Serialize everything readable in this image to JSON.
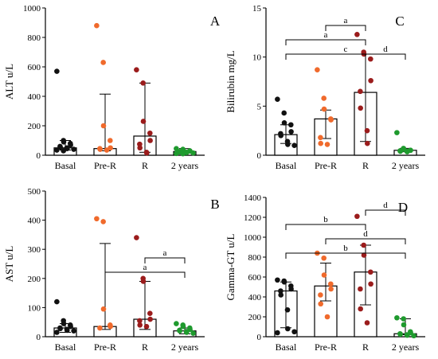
{
  "colors": {
    "basal": "#111111",
    "pre_r": "#f06a2c",
    "r": "#9b1c1c",
    "two_years": "#1f9a2e",
    "bar_edge": "#000000",
    "bar_fill": "#ffffff"
  },
  "chart_data": [
    {
      "type": "scatter",
      "panel_label": "A",
      "ylabel": "ALT u/L",
      "ylim": [
        0,
        1000
      ],
      "yticks": [
        0,
        200,
        400,
        600,
        800,
        1000
      ],
      "categories": [
        "Basal",
        "Pre-R",
        "R",
        "2 years"
      ],
      "bar_values": [
        50,
        45,
        130,
        25
      ],
      "error_low": [
        35,
        30,
        20,
        15
      ],
      "error_high": [
        100,
        415,
        490,
        45
      ],
      "points": [
        [
          570,
          100,
          90,
          80,
          70,
          60,
          55,
          50,
          45,
          40,
          35,
          30
        ],
        [
          880,
          630,
          200,
          100,
          50,
          45,
          40,
          35
        ],
        [
          580,
          490,
          230,
          150,
          100,
          75,
          50,
          20,
          15
        ],
        [
          45,
          40,
          35,
          30,
          28,
          25,
          22,
          20,
          18,
          15,
          12,
          10
        ]
      ],
      "comparisons": []
    },
    {
      "type": "scatter",
      "panel_label": "C",
      "ylabel": "Bilirubin mg/L",
      "ylim": [
        0,
        15
      ],
      "yticks": [
        0,
        5,
        10,
        15
      ],
      "categories": [
        "Basal",
        "Pre-R",
        "R",
        "2 years"
      ],
      "bar_values": [
        2.1,
        3.7,
        6.4,
        0.5
      ],
      "error_low": [
        1.2,
        1.7,
        1.4,
        0.35
      ],
      "error_high": [
        3.1,
        4.6,
        10.3,
        0.7
      ],
      "points": [
        [
          5.7,
          4.3,
          3.3,
          3.1,
          2.4,
          2.2,
          2.0,
          1.4,
          1.1,
          1.0
        ],
        [
          8.7,
          5.8,
          4.7,
          3.7,
          3.6,
          1.8,
          1.2,
          1.1
        ],
        [
          12.3,
          10.5,
          10.3,
          9.8,
          7.6,
          6.5,
          4.8,
          2.5,
          1.2
        ],
        [
          2.3,
          0.7,
          0.6,
          0.5,
          0.5,
          0.45,
          0.4,
          0.4,
          0.35
        ]
      ],
      "comparisons": [
        {
          "from": 0,
          "to": 3,
          "label": "c",
          "level": 1
        },
        {
          "from": 0,
          "to": 2,
          "label": "a",
          "level": 2
        },
        {
          "from": 1,
          "to": 2,
          "label": "a",
          "level": 3
        },
        {
          "from": 2,
          "to": 3,
          "label": "d",
          "level": 1
        }
      ]
    },
    {
      "type": "scatter",
      "panel_label": "B",
      "ylabel": "AST u/L",
      "ylim": [
        0,
        500
      ],
      "yticks": [
        0,
        100,
        200,
        300,
        400,
        500
      ],
      "categories": [
        "Basal",
        "Pre-R",
        "R",
        "2 years"
      ],
      "bar_values": [
        30,
        35,
        60,
        20
      ],
      "error_low": [
        15,
        25,
        25,
        10
      ],
      "error_high": [
        45,
        320,
        190,
        30
      ],
      "points": [
        [
          120,
          55,
          45,
          40,
          35,
          30,
          28,
          25,
          22,
          20,
          15
        ],
        [
          405,
          395,
          95,
          40,
          35,
          30
        ],
        [
          340,
          200,
          190,
          80,
          60,
          55,
          40,
          35
        ],
        [
          45,
          40,
          35,
          30,
          25,
          22,
          20,
          18,
          15,
          12
        ]
      ],
      "comparisons": [
        {
          "from": 1,
          "to": 3,
          "label": "a",
          "level": 1
        },
        {
          "from": 2,
          "to": 3,
          "label": "a",
          "level": 2
        }
      ]
    },
    {
      "type": "scatter",
      "panel_label": "D",
      "ylabel": "Gamma-GT u/L",
      "ylim": [
        0,
        1400
      ],
      "yticks": [
        0,
        200,
        400,
        600,
        800,
        1000,
        1200,
        1400
      ],
      "categories": [
        "Basal",
        "Pre-R",
        "R",
        "2 years"
      ],
      "bar_values": [
        460,
        510,
        650,
        30
      ],
      "error_low": [
        90,
        360,
        320,
        20
      ],
      "error_high": [
        550,
        740,
        920,
        180
      ],
      "points": [
        [
          570,
          560,
          550,
          510,
          480,
          460,
          420,
          270,
          80,
          50,
          40
        ],
        [
          840,
          790,
          620,
          530,
          480,
          420,
          330,
          200
        ],
        [
          1210,
          920,
          820,
          650,
          530,
          480,
          280,
          140
        ],
        [
          190,
          180,
          120,
          50,
          40,
          30,
          25,
          20,
          15,
          10
        ]
      ],
      "comparisons": [
        {
          "from": 0,
          "to": 3,
          "label": "b",
          "level": 1
        },
        {
          "from": 1,
          "to": 3,
          "label": "d",
          "level": 2
        },
        {
          "from": 0,
          "to": 2,
          "label": "b",
          "level": 3
        },
        {
          "from": 2,
          "to": 3,
          "label": "d",
          "level": 4
        }
      ]
    }
  ]
}
